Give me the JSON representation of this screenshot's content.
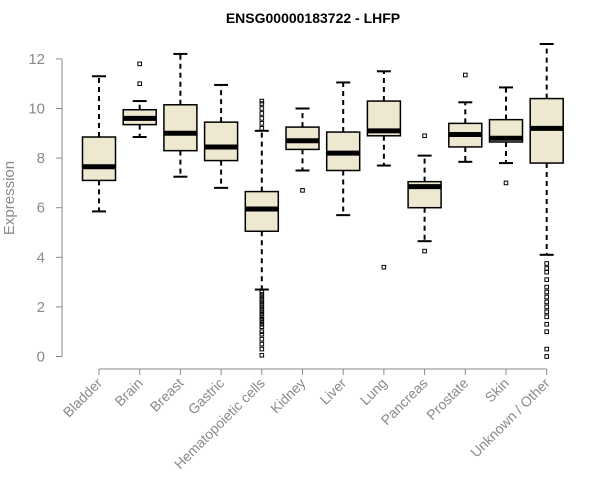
{
  "chart_data": {
    "type": "boxplot",
    "title": "ENSG00000183722 - LHFP",
    "xlabel": "",
    "ylabel": "Expression",
    "ylim": [
      0,
      12.6
    ],
    "yticks": [
      0,
      2,
      4,
      6,
      8,
      10,
      12
    ],
    "colors": {
      "box_fill": "#efe8d0",
      "stroke": "#000000",
      "axis": "#8a8a8a"
    },
    "categories": [
      {
        "name": "Bladder",
        "whisker_low": 5.85,
        "q1": 7.1,
        "median": 7.65,
        "q3": 8.85,
        "whisker_high": 11.3,
        "outliers": []
      },
      {
        "name": "Brain",
        "whisker_low": 8.85,
        "q1": 9.35,
        "median": 9.6,
        "q3": 9.95,
        "whisker_high": 10.3,
        "outliers": [
          11.0,
          11.8
        ]
      },
      {
        "name": "Breast",
        "whisker_low": 7.25,
        "q1": 8.3,
        "median": 9.0,
        "q3": 10.15,
        "whisker_high": 12.2,
        "outliers": []
      },
      {
        "name": "Gastric",
        "whisker_low": 6.8,
        "q1": 7.9,
        "median": 8.45,
        "q3": 9.45,
        "whisker_high": 10.95,
        "outliers": []
      },
      {
        "name": "Hematopoietic cells",
        "whisker_low": 2.7,
        "q1": 5.05,
        "median": 5.95,
        "q3": 6.65,
        "whisker_high": 9.1,
        "outliers": [
          0.05,
          0.3,
          0.5,
          0.7,
          0.9,
          1.0,
          1.2,
          1.3,
          1.4,
          1.5,
          1.6,
          1.7,
          1.8,
          1.9,
          2.0,
          2.1,
          2.2,
          2.3,
          2.4,
          2.5,
          2.6,
          9.2,
          9.4,
          9.6,
          9.8,
          10.0,
          10.2,
          10.3
        ]
      },
      {
        "name": "Kidney",
        "whisker_low": 7.5,
        "q1": 8.35,
        "median": 8.7,
        "q3": 9.25,
        "whisker_high": 10.0,
        "outliers": [
          6.7
        ]
      },
      {
        "name": "Liver",
        "whisker_low": 5.7,
        "q1": 7.5,
        "median": 8.2,
        "q3": 9.05,
        "whisker_high": 11.05,
        "outliers": []
      },
      {
        "name": "Lung",
        "whisker_low": 7.7,
        "q1": 8.9,
        "median": 9.1,
        "q3": 10.3,
        "whisker_high": 11.5,
        "outliers": [
          3.6
        ]
      },
      {
        "name": "Pancreas",
        "whisker_low": 4.65,
        "q1": 6.0,
        "median": 6.85,
        "q3": 7.05,
        "whisker_high": 8.1,
        "outliers": [
          4.25,
          8.9
        ]
      },
      {
        "name": "Prostate",
        "whisker_low": 7.85,
        "q1": 8.45,
        "median": 8.95,
        "q3": 9.4,
        "whisker_high": 10.25,
        "outliers": [
          11.35
        ]
      },
      {
        "name": "Skin",
        "whisker_low": 7.8,
        "q1": 8.65,
        "median": 8.8,
        "q3": 9.55,
        "whisker_high": 10.85,
        "outliers": [
          7.0
        ]
      },
      {
        "name": "Unknown / Other",
        "whisker_low": 4.1,
        "q1": 7.8,
        "median": 9.2,
        "q3": 10.4,
        "whisker_high": 12.6,
        "outliers": [
          0.0,
          0.3,
          1.0,
          1.3,
          1.6,
          1.8,
          2.0,
          2.2,
          2.4,
          2.6,
          2.8,
          3.1,
          3.4,
          3.55,
          3.75
        ]
      }
    ]
  }
}
